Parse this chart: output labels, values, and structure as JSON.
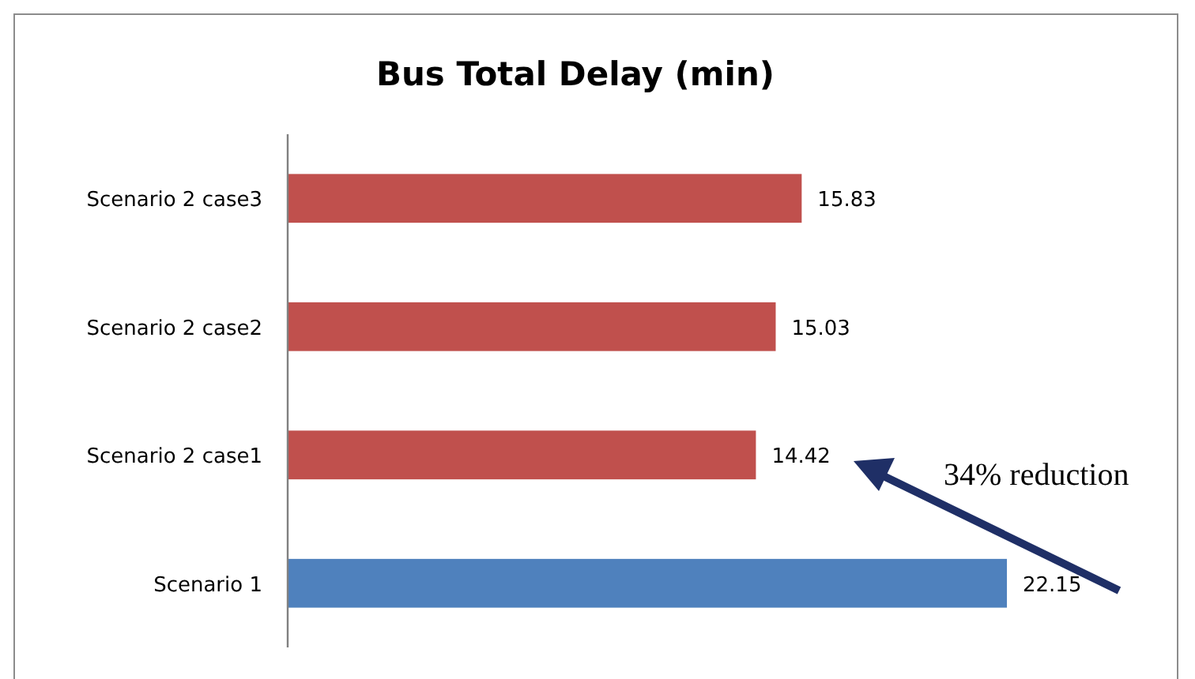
{
  "chart_data": {
    "type": "bar",
    "orientation": "horizontal",
    "title": "Bus Total Delay (min)",
    "categories": [
      "Scenario 2 case3",
      "Scenario 2 case2",
      "Scenario 2 case1",
      "Scenario 1"
    ],
    "values": [
      15.83,
      15.03,
      14.42,
      22.15
    ],
    "colors": [
      "#c0504d",
      "#c0504d",
      "#c0504d",
      "#4f81bd"
    ],
    "data_labels": true,
    "annotations": [
      "34% reduction"
    ]
  }
}
